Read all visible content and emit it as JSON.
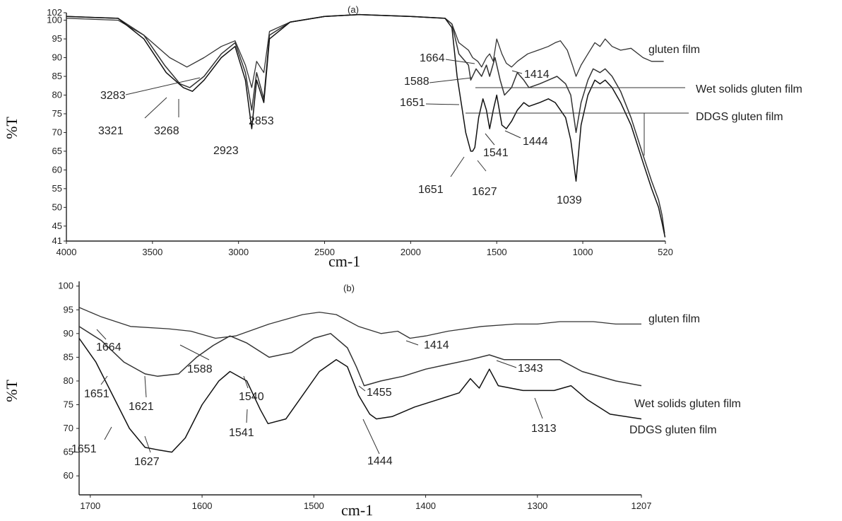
{
  "chart_data": [
    {
      "panel": "(a)",
      "type": "line",
      "xlabel": "cm-1",
      "ylabel": "%T",
      "xlim": [
        4000,
        520
      ],
      "ylim": [
        41,
        102
      ],
      "x_ticks": [
        4000,
        3500,
        3000,
        2500,
        2000,
        1500,
        1000,
        520
      ],
      "y_ticks": [
        41,
        45,
        50,
        55,
        60,
        65,
        70,
        75,
        80,
        85,
        90,
        95,
        100,
        102
      ],
      "series": [
        {
          "name": "gluten film",
          "points": [
            [
              4000,
              100.5
            ],
            [
              3700,
              100
            ],
            [
              3550,
              96
            ],
            [
              3400,
              90
            ],
            [
              3300,
              87.5
            ],
            [
              3200,
              90
            ],
            [
              3100,
              93
            ],
            [
              3020,
              94.5
            ],
            [
              2960,
              88
            ],
            [
              2923,
              82
            ],
            [
              2895,
              89
            ],
            [
              2853,
              86
            ],
            [
              2820,
              97
            ],
            [
              2700,
              99.5
            ],
            [
              2500,
              101
            ],
            [
              2300,
              101.5
            ],
            [
              2000,
              101
            ],
            [
              1800,
              100.5
            ],
            [
              1760,
              99
            ],
            [
              1720,
              94
            ],
            [
              1664,
              92
            ],
            [
              1640,
              90
            ],
            [
              1610,
              89
            ],
            [
              1588,
              87.5
            ],
            [
              1560,
              90
            ],
            [
              1541,
              91
            ],
            [
              1520,
              89
            ],
            [
              1500,
              95
            ],
            [
              1470,
              91
            ],
            [
              1444,
              88.5
            ],
            [
              1414,
              87.5
            ],
            [
              1380,
              89
            ],
            [
              1320,
              91
            ],
            [
              1260,
              92
            ],
            [
              1200,
              93
            ],
            [
              1160,
              94
            ],
            [
              1130,
              94.5
            ],
            [
              1090,
              92
            ],
            [
              1060,
              88
            ],
            [
              1039,
              85
            ],
            [
              1010,
              88
            ],
            [
              970,
              91
            ],
            [
              930,
              94
            ],
            [
              900,
              93
            ],
            [
              870,
              95
            ],
            [
              830,
              93
            ],
            [
              780,
              92
            ],
            [
              720,
              92.5
            ],
            [
              650,
              90
            ],
            [
              600,
              89
            ],
            [
              560,
              89
            ],
            [
              530,
              89
            ]
          ]
        },
        {
          "name": "Wet solids gluten film",
          "points": [
            [
              4000,
              101
            ],
            [
              3700,
              100.5
            ],
            [
              3550,
              96
            ],
            [
              3430,
              88
            ],
            [
              3340,
              83
            ],
            [
              3283,
              82
            ],
            [
              3200,
              85
            ],
            [
              3100,
              91
            ],
            [
              3020,
              94
            ],
            [
              2960,
              86
            ],
            [
              2923,
              76
            ],
            [
              2895,
              86
            ],
            [
              2853,
              79
            ],
            [
              2820,
              96
            ],
            [
              2700,
              99.5
            ],
            [
              2500,
              101
            ],
            [
              2300,
              101.5
            ],
            [
              2000,
              101
            ],
            [
              1800,
              100.5
            ],
            [
              1760,
              99
            ],
            [
              1720,
              91
            ],
            [
              1664,
              88
            ],
            [
              1651,
              84
            ],
            [
              1620,
              87
            ],
            [
              1588,
              85
            ],
            [
              1560,
              88
            ],
            [
              1541,
              85
            ],
            [
              1510,
              90
            ],
            [
              1480,
              84
            ],
            [
              1455,
              80
            ],
            [
              1414,
              82
            ],
            [
              1380,
              86
            ],
            [
              1343,
              84
            ],
            [
              1313,
              82
            ],
            [
              1250,
              83
            ],
            [
              1200,
              84
            ],
            [
              1150,
              85
            ],
            [
              1100,
              83
            ],
            [
              1070,
              80
            ],
            [
              1039,
              70
            ],
            [
              1010,
              78
            ],
            [
              970,
              84
            ],
            [
              940,
              87
            ],
            [
              900,
              86
            ],
            [
              870,
              87
            ],
            [
              830,
              85
            ],
            [
              780,
              81
            ],
            [
              720,
              74
            ],
            [
              650,
              64
            ],
            [
              600,
              57
            ],
            [
              560,
              52
            ],
            [
              540,
              48
            ],
            [
              525,
              43
            ]
          ]
        },
        {
          "name": "DDGS gluten film",
          "points": [
            [
              4000,
              101
            ],
            [
              3700,
              100.5
            ],
            [
              3550,
              95
            ],
            [
              3420,
              86
            ],
            [
              3321,
              82
            ],
            [
              3268,
              81
            ],
            [
              3200,
              84
            ],
            [
              3100,
              90
            ],
            [
              3020,
              93
            ],
            [
              2960,
              84
            ],
            [
              2923,
              71
            ],
            [
              2895,
              84
            ],
            [
              2853,
              78
            ],
            [
              2820,
              95
            ],
            [
              2700,
              99.5
            ],
            [
              2500,
              101
            ],
            [
              2300,
              101.5
            ],
            [
              2000,
              101
            ],
            [
              1800,
              100.5
            ],
            [
              1760,
              98
            ],
            [
              1730,
              85
            ],
            [
              1700,
              76
            ],
            [
              1680,
              70
            ],
            [
              1651,
              65
            ],
            [
              1640,
              65
            ],
            [
              1627,
              66
            ],
            [
              1605,
              74
            ],
            [
              1580,
              79
            ],
            [
              1560,
              76
            ],
            [
              1541,
              71
            ],
            [
              1520,
              76
            ],
            [
              1500,
              80
            ],
            [
              1470,
              72
            ],
            [
              1444,
              71
            ],
            [
              1414,
              73
            ],
            [
              1380,
              76
            ],
            [
              1343,
              78
            ],
            [
              1313,
              77
            ],
            [
              1250,
              78
            ],
            [
              1200,
              79
            ],
            [
              1160,
              78
            ],
            [
              1100,
              74
            ],
            [
              1070,
              68
            ],
            [
              1039,
              57
            ],
            [
              1010,
              72
            ],
            [
              970,
              80
            ],
            [
              930,
              84
            ],
            [
              900,
              83
            ],
            [
              870,
              84
            ],
            [
              830,
              82
            ],
            [
              780,
              78
            ],
            [
              720,
              72
            ],
            [
              650,
              62
            ],
            [
              600,
              55
            ],
            [
              560,
              50
            ],
            [
              540,
              46
            ],
            [
              522,
              42
            ]
          ]
        }
      ],
      "annotations": [
        "(a)",
        "3283",
        "3321",
        "3268",
        "2923",
        "2853",
        "1664",
        "1588",
        "1651",
        "1414",
        "1541",
        "1444",
        "1651",
        "1627",
        "1039"
      ]
    },
    {
      "panel": "(b)",
      "type": "line",
      "xlabel": "cm-1",
      "ylabel": "%T",
      "xlim": [
        1710,
        1207
      ],
      "ylim": [
        56,
        101
      ],
      "x_ticks": [
        1700,
        1600,
        1500,
        1400,
        1300,
        1207
      ],
      "y_ticks": [
        60,
        65,
        70,
        75,
        80,
        85,
        90,
        95,
        100
      ],
      "series": [
        {
          "name": "gluten film",
          "points": [
            [
              1710,
              95.5
            ],
            [
              1690,
              93.5
            ],
            [
              1664,
              91.5
            ],
            [
              1630,
              91
            ],
            [
              1610,
              90.5
            ],
            [
              1588,
              89
            ],
            [
              1570,
              89.5
            ],
            [
              1540,
              92
            ],
            [
              1510,
              94
            ],
            [
              1495,
              94.5
            ],
            [
              1480,
              94
            ],
            [
              1460,
              91.5
            ],
            [
              1440,
              90
            ],
            [
              1425,
              90.5
            ],
            [
              1414,
              89
            ],
            [
              1400,
              89.5
            ],
            [
              1380,
              90.5
            ],
            [
              1350,
              91.5
            ],
            [
              1320,
              92
            ],
            [
              1300,
              92
            ],
            [
              1280,
              92.5
            ],
            [
              1250,
              92.5
            ],
            [
              1230,
              92
            ],
            [
              1207,
              92
            ]
          ]
        },
        {
          "name": "Wet solids gluten film",
          "points": [
            [
              1710,
              91.5
            ],
            [
              1690,
              88.5
            ],
            [
              1670,
              84
            ],
            [
              1651,
              81.5
            ],
            [
              1640,
              81
            ],
            [
              1621,
              81.5
            ],
            [
              1605,
              85
            ],
            [
              1590,
              87.5
            ],
            [
              1575,
              89.5
            ],
            [
              1560,
              88
            ],
            [
              1540,
              85
            ],
            [
              1520,
              86
            ],
            [
              1500,
              89
            ],
            [
              1485,
              90
            ],
            [
              1470,
              87
            ],
            [
              1462,
              83
            ],
            [
              1455,
              79
            ],
            [
              1440,
              80
            ],
            [
              1420,
              81
            ],
            [
              1400,
              82.5
            ],
            [
              1380,
              83.5
            ],
            [
              1360,
              84.5
            ],
            [
              1343,
              85.5
            ],
            [
              1330,
              84.5
            ],
            [
              1313,
              84.5
            ],
            [
              1280,
              84.5
            ],
            [
              1260,
              82
            ],
            [
              1230,
              80
            ],
            [
              1207,
              79
            ]
          ]
        },
        {
          "name": "DDGS gluten film",
          "points": [
            [
              1710,
              89
            ],
            [
              1695,
              84
            ],
            [
              1680,
              77
            ],
            [
              1665,
              70
            ],
            [
              1651,
              66
            ],
            [
              1640,
              65.5
            ],
            [
              1627,
              65
            ],
            [
              1615,
              68
            ],
            [
              1600,
              75
            ],
            [
              1585,
              80
            ],
            [
              1575,
              82
            ],
            [
              1560,
              80
            ],
            [
              1548,
              74
            ],
            [
              1541,
              71
            ],
            [
              1525,
              72
            ],
            [
              1510,
              77
            ],
            [
              1495,
              82
            ],
            [
              1480,
              84.5
            ],
            [
              1470,
              83
            ],
            [
              1460,
              77
            ],
            [
              1450,
              73
            ],
            [
              1444,
              72
            ],
            [
              1430,
              72.5
            ],
            [
              1410,
              74.5
            ],
            [
              1390,
              76
            ],
            [
              1370,
              77.5
            ],
            [
              1360,
              80.5
            ],
            [
              1352,
              78.5
            ],
            [
              1343,
              82.5
            ],
            [
              1335,
              79
            ],
            [
              1313,
              78
            ],
            [
              1300,
              78
            ],
            [
              1285,
              78
            ],
            [
              1270,
              79
            ],
            [
              1255,
              76
            ],
            [
              1235,
              73
            ],
            [
              1207,
              72
            ]
          ]
        }
      ],
      "annotations": [
        "(b)",
        "1664",
        "1588",
        "1414",
        "1651",
        "1621",
        "1540",
        "1455",
        "1343",
        "1651",
        "1627",
        "1541",
        "1444",
        "1313"
      ]
    }
  ]
}
